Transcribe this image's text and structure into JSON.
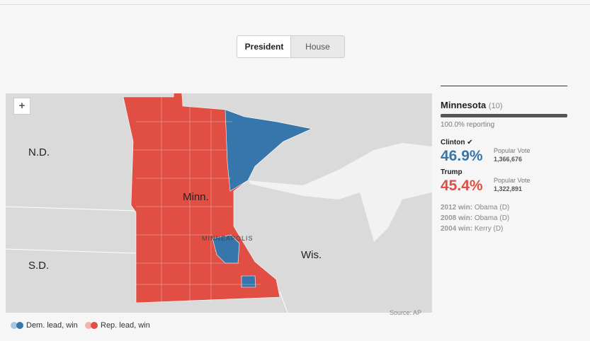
{
  "tabs": [
    "President",
    "House"
  ],
  "map": {
    "zoom": "+",
    "labels": [
      "N.D.",
      "S.D.",
      "Minn.",
      "Wis.",
      "MINNEAPOLIS"
    ],
    "source": "Source: AP"
  },
  "results": {
    "state": "Minnesota",
    "electoral_votes": "(10)",
    "reporting": "100.0% reporting",
    "candidates": [
      {
        "name": "Clinton",
        "percent": "46.9%",
        "vote_label": "Popular Vote",
        "votes": "1,366,676"
      },
      {
        "name": "Trump",
        "percent": "45.4%",
        "vote_label": "Popular Vote",
        "votes": "1,322,891"
      }
    ],
    "history": [
      {
        "year": "2012 win:",
        "winner": "Obama (D)"
      },
      {
        "year": "2008 win:",
        "winner": "Obama (D)"
      },
      {
        "year": "2004 win:",
        "winner": "Kerry (D)"
      }
    ]
  },
  "legend": [
    "Dem. lead, win",
    "Rep. lead, win"
  ]
}
